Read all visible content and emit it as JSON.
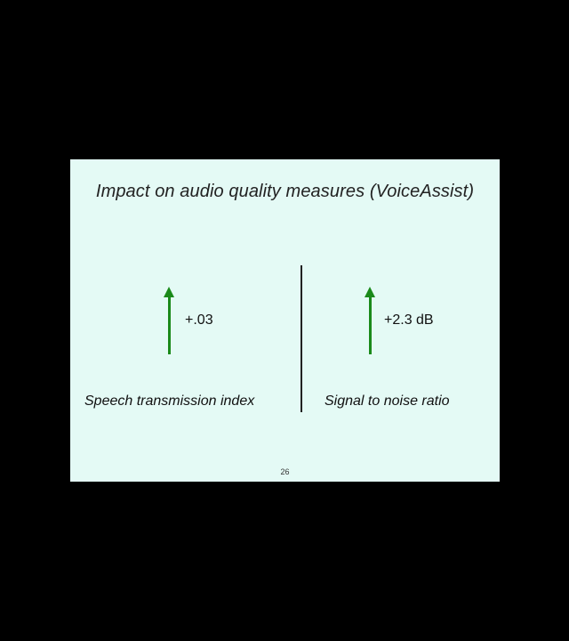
{
  "slide": {
    "title": "Impact on audio quality measures (VoiceAssist)",
    "page_number": "26",
    "metrics": [
      {
        "value": "+.03",
        "label": "Speech transmission index",
        "direction": "up",
        "icon": "up-arrow-icon"
      },
      {
        "value": "+2.3 dB",
        "label": "Signal to noise ratio",
        "direction": "up",
        "icon": "up-arrow-icon"
      }
    ],
    "colors": {
      "background": "#e4faf5",
      "arrow": "#1a8a1a",
      "frame": "#000000"
    }
  }
}
